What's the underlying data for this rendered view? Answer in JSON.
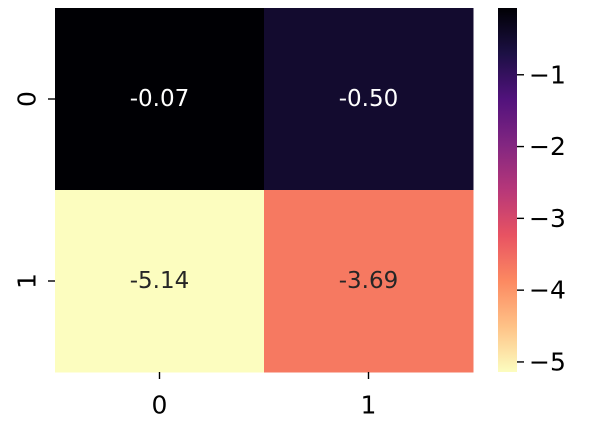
{
  "chart_data": {
    "type": "heatmap",
    "title": "",
    "xlabel": "",
    "ylabel": "",
    "x_categories": [
      "0",
      "1"
    ],
    "y_categories": [
      "0",
      "1"
    ],
    "values": [
      [
        -0.07,
        -0.5
      ],
      [
        -5.14,
        -3.69
      ]
    ],
    "cell_labels": [
      [
        "-0.07",
        "-0.50"
      ],
      [
        "-5.14",
        "-3.69"
      ]
    ],
    "colormap": "magma",
    "color_range": [
      -5.14,
      -0.07
    ],
    "colorbar": {
      "ticks": [
        -1,
        -2,
        -3,
        -4,
        -5
      ],
      "tick_labels": [
        "−1",
        "−2",
        "−3",
        "−4",
        "−5"
      ]
    },
    "annotation_colors": {
      "dark_background_text": "#ffffff",
      "light_background_text": "#262626"
    }
  }
}
